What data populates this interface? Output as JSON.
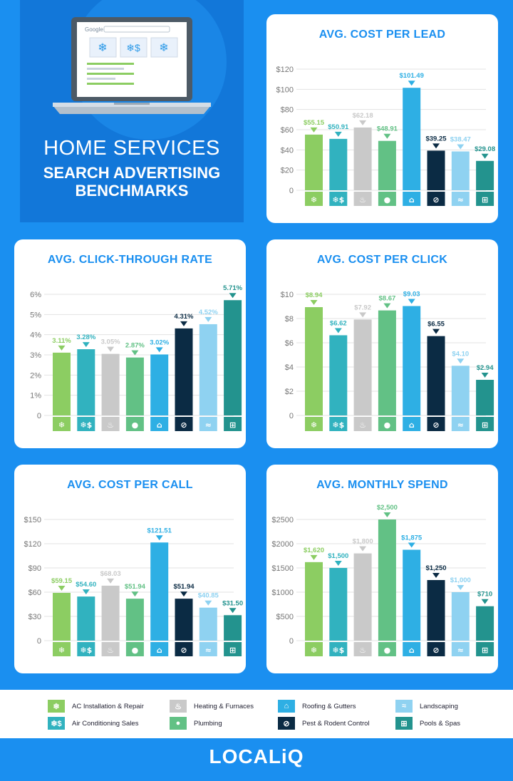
{
  "hero": {
    "title": "HOME SERVICES",
    "subtitle_line1": "SEARCH ADVERTISING",
    "subtitle_line2": "BENCHMARKS",
    "search_engine_label": "Google"
  },
  "colors": {
    "ac_install": "#8ccd62",
    "ac_sales": "#31b2bf",
    "heating": "#c9c9c9",
    "plumbing": "#62c185",
    "roofing": "#2eafe4",
    "pest": "#0b2b44",
    "landscaping": "#8fd2f1",
    "pools": "#23938e",
    "title": "#1a8ff0",
    "axis_text": "#777777"
  },
  "categories": [
    "AC Installation & Repair",
    "Air Conditioning Sales",
    "Heating & Furnaces",
    "Plumbing",
    "Roofing & Gutters",
    "Pest & Rodent Control",
    "Landscaping",
    "Pools & Spas"
  ],
  "category_keys": [
    "ac_install",
    "ac_sales",
    "heating",
    "plumbing",
    "roofing",
    "pest",
    "landscaping",
    "pools"
  ],
  "category_icons": [
    "ac-wrench-icon",
    "ac-dollar-icon",
    "flame-icon",
    "water-drop-icon",
    "roof-icon",
    "no-pest-icon",
    "landscape-icon",
    "pool-ladder-icon"
  ],
  "icon_glyphs": [
    "❄",
    "❄$",
    "♨",
    "●",
    "⌂",
    "⊘",
    "≈",
    "⊞"
  ],
  "chart_data": [
    {
      "id": "cost-per-lead",
      "type": "bar",
      "title": "AVG. COST PER LEAD",
      "values": [
        55.15,
        50.91,
        62.18,
        48.91,
        101.49,
        39.25,
        38.47,
        29.08
      ],
      "labels": [
        "$55.15",
        "$50.91",
        "$62.18",
        "$48.91",
        "$101.49",
        "$39.25",
        "$38.47",
        "$29.08"
      ],
      "ylim": [
        0,
        120
      ],
      "yticks": [
        "0",
        "$20",
        "$40",
        "$60",
        "$80",
        "$100",
        "$120"
      ]
    },
    {
      "id": "click-through-rate",
      "type": "bar",
      "title": "AVG. CLICK-THROUGH RATE",
      "values": [
        3.11,
        3.28,
        3.05,
        2.87,
        3.02,
        4.31,
        4.52,
        5.71
      ],
      "labels": [
        "3.11%",
        "3.28%",
        "3.05%",
        "2.87%",
        "3.02%",
        "4.31%",
        "4.52%",
        "5.71%"
      ],
      "ylim": [
        0,
        6
      ],
      "yticks": [
        "0",
        "1%",
        "2%",
        "3%",
        "4%",
        "5%",
        "6%"
      ]
    },
    {
      "id": "cost-per-click",
      "type": "bar",
      "title": "AVG. COST PER CLICK",
      "values": [
        8.94,
        6.62,
        7.92,
        8.67,
        9.03,
        6.55,
        4.1,
        2.94
      ],
      "labels": [
        "$8.94",
        "$6.62",
        "$7.92",
        "$8.67",
        "$9.03",
        "$6.55",
        "$4.10",
        "$2.94"
      ],
      "ylim": [
        0,
        10
      ],
      "yticks": [
        "0",
        "$2",
        "$4",
        "$6",
        "$8",
        "$10"
      ]
    },
    {
      "id": "cost-per-call",
      "type": "bar",
      "title": "AVG. COST PER CALL",
      "values": [
        59.15,
        54.6,
        68.03,
        51.94,
        121.51,
        51.94,
        40.85,
        31.5
      ],
      "labels": [
        "$59.15",
        "$54.60",
        "$68.03",
        "$51.94",
        "$121.51",
        "$51.94",
        "$40.85",
        "$31.50"
      ],
      "ylim": [
        0,
        150
      ],
      "yticks": [
        "0",
        "$30",
        "$60",
        "$90",
        "$120",
        "$150"
      ]
    },
    {
      "id": "monthly-spend",
      "type": "bar",
      "title": "AVG. MONTHLY SPEND",
      "values": [
        1620,
        1500,
        1800,
        2500,
        1875,
        1250,
        1000,
        710
      ],
      "labels": [
        "$1,620",
        "$1,500",
        "$1,800",
        "$2,500",
        "$1,875",
        "$1,250",
        "$1,000",
        "$710"
      ],
      "ylim": [
        0,
        2500
      ],
      "yticks": [
        "0",
        "$500",
        "$1000",
        "$1500",
        "$2000",
        "$2500"
      ]
    }
  ],
  "legend": {
    "items": [
      "AC Installation & Repair",
      "Air Conditioning Sales",
      "Heating & Furnaces",
      "Plumbing",
      "Roofing & Gutters",
      "Pest & Rodent Control",
      "Landscaping",
      "Pools & Spas"
    ]
  },
  "footer": {
    "logo": "LOCALiQ"
  }
}
